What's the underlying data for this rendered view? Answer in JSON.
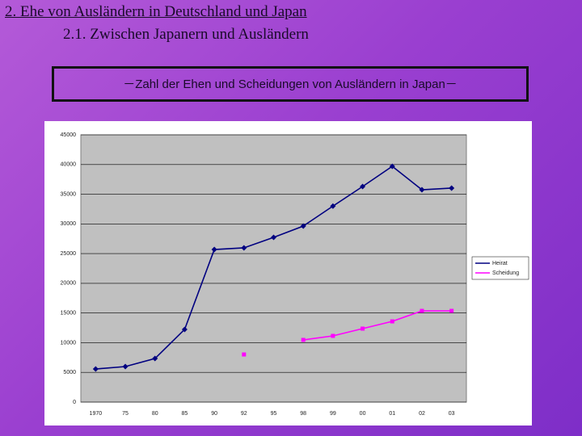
{
  "header": {
    "title": "2. Ehe von Ausländern in Deutschland und Japan",
    "subtitle": "2.1. Zwischen Japanern und Ausländern"
  },
  "chart_data": {
    "type": "line",
    "title": "－Zahl der Ehen und Scheidungen von Ausländern in Japan－",
    "categories": [
      "1970",
      "75",
      "80",
      "85",
      "90",
      "92",
      "95",
      "98",
      "99",
      "00",
      "01",
      "02",
      "03"
    ],
    "series": [
      {
        "name": "Heirat",
        "color": "#000080",
        "values": [
          5570,
          5980,
          7340,
          12240,
          25690,
          25970,
          27730,
          29640,
          33000,
          36300,
          39700,
          35750,
          36030
        ]
      },
      {
        "name": "Scheidung",
        "color": "#ff00ff",
        "values": [
          null,
          null,
          null,
          null,
          null,
          8020,
          null,
          10470,
          11150,
          12370,
          13590,
          15360,
          15360
        ]
      }
    ],
    "ylim": [
      0,
      45000
    ],
    "yticks": [
      0,
      5000,
      10000,
      15000,
      20000,
      25000,
      30000,
      35000,
      40000,
      45000
    ],
    "grid": true,
    "legend": "right"
  }
}
